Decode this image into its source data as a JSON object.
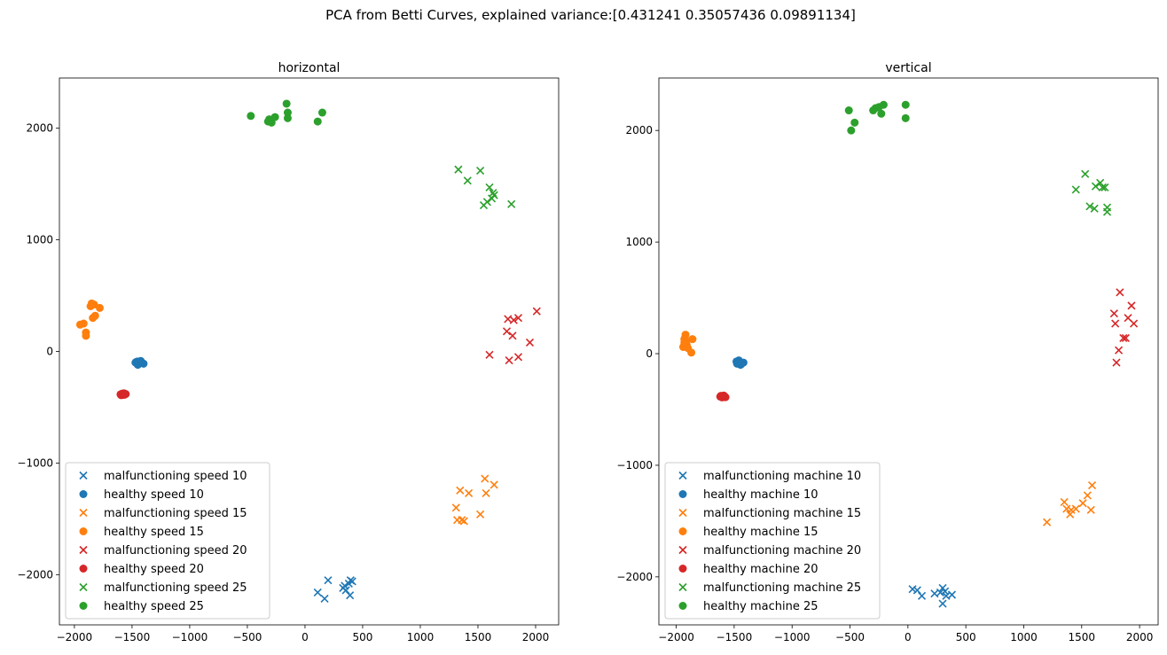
{
  "figure_title": "PCA from Betti Curves, explained variance:[0.431241   0.35057436 0.09891134]",
  "colors": {
    "10": "#1f77b4",
    "15": "#ff7f0e",
    "20": "#d62728",
    "25": "#2ca02c"
  },
  "chart_data": [
    {
      "type": "scatter",
      "title": "horizontal",
      "xlabel": "",
      "ylabel": "",
      "xlim": [
        -2130,
        2200
      ],
      "ylim": [
        -2450,
        2450
      ],
      "xticks": [
        -2000,
        -1500,
        -1000,
        -500,
        0,
        500,
        1000,
        1500,
        2000
      ],
      "yticks": [
        -2000,
        -1000,
        0,
        1000,
        2000
      ],
      "grid": false,
      "legend_position": "lower-left",
      "series": [
        {
          "name": "malfunctioning speed 10",
          "marker": "x",
          "color_key": "10",
          "points": [
            [
              110,
              -2160
            ],
            [
              170,
              -2215
            ],
            [
              200,
              -2050
            ],
            [
              330,
              -2120
            ],
            [
              345,
              -2100
            ],
            [
              355,
              -2140
            ],
            [
              380,
              -2080
            ],
            [
              395,
              -2050
            ],
            [
              390,
              -2185
            ],
            [
              410,
              -2060
            ]
          ]
        },
        {
          "name": "healthy speed 10",
          "marker": "o",
          "color_key": "10",
          "points": [
            [
              -1470,
              -100
            ],
            [
              -1455,
              -90
            ],
            [
              -1445,
              -110
            ],
            [
              -1435,
              -100
            ],
            [
              -1425,
              -85
            ],
            [
              -1410,
              -105
            ],
            [
              -1400,
              -110
            ],
            [
              -1450,
              -120
            ],
            [
              -1465,
              -95
            ],
            [
              -1420,
              -95
            ]
          ]
        },
        {
          "name": "malfunctioning speed 15",
          "marker": "x",
          "color_key": "15",
          "points": [
            [
              1310,
              -1400
            ],
            [
              1320,
              -1510
            ],
            [
              1345,
              -1245
            ],
            [
              1360,
              -1510
            ],
            [
              1380,
              -1520
            ],
            [
              1420,
              -1270
            ],
            [
              1520,
              -1460
            ],
            [
              1560,
              -1140
            ],
            [
              1570,
              -1270
            ],
            [
              1640,
              -1195
            ]
          ]
        },
        {
          "name": "healthy speed 15",
          "marker": "o",
          "color_key": "15",
          "points": [
            [
              -1950,
              240
            ],
            [
              -1920,
              250
            ],
            [
              -1900,
              140
            ],
            [
              -1900,
              170
            ],
            [
              -1860,
              405
            ],
            [
              -1850,
              430
            ],
            [
              -1840,
              300
            ],
            [
              -1830,
              420
            ],
            [
              -1820,
              320
            ],
            [
              -1780,
              390
            ]
          ]
        },
        {
          "name": "malfunctioning speed 20",
          "marker": "x",
          "color_key": "20",
          "points": [
            [
              1600,
              -30
            ],
            [
              1750,
              180
            ],
            [
              1770,
              -80
            ],
            [
              1760,
              290
            ],
            [
              1800,
              140
            ],
            [
              1810,
              280
            ],
            [
              1850,
              300
            ],
            [
              1850,
              -50
            ],
            [
              1950,
              80
            ],
            [
              2010,
              360
            ]
          ]
        },
        {
          "name": "healthy speed 20",
          "marker": "o",
          "color_key": "20",
          "points": [
            [
              -1600,
              -385
            ],
            [
              -1590,
              -380
            ],
            [
              -1580,
              -390
            ],
            [
              -1570,
              -375
            ],
            [
              -1560,
              -380
            ],
            [
              -1595,
              -392
            ],
            [
              -1575,
              -385
            ],
            [
              -1585,
              -378
            ],
            [
              -1565,
              -388
            ],
            [
              -1555,
              -382
            ]
          ]
        },
        {
          "name": "malfunctioning speed 25",
          "marker": "x",
          "color_key": "25",
          "points": [
            [
              1330,
              1630
            ],
            [
              1410,
              1530
            ],
            [
              1520,
              1620
            ],
            [
              1550,
              1310
            ],
            [
              1580,
              1340
            ],
            [
              1600,
              1470
            ],
            [
              1620,
              1370
            ],
            [
              1630,
              1420
            ],
            [
              1640,
              1400
            ],
            [
              1790,
              1320
            ]
          ]
        },
        {
          "name": "healthy speed 25",
          "marker": "o",
          "color_key": "25",
          "points": [
            [
              -470,
              2110
            ],
            [
              -320,
              2060
            ],
            [
              -310,
              2080
            ],
            [
              -290,
              2050
            ],
            [
              -260,
              2100
            ],
            [
              -160,
              2220
            ],
            [
              -150,
              2140
            ],
            [
              -150,
              2090
            ],
            [
              110,
              2060
            ],
            [
              150,
              2140
            ]
          ]
        }
      ]
    },
    {
      "type": "scatter",
      "title": "vertical",
      "xlabel": "",
      "ylabel": "",
      "xlim": [
        -2150,
        2160
      ],
      "ylim": [
        -2430,
        2470
      ],
      "xticks": [
        -2000,
        -1500,
        -1000,
        -500,
        0,
        500,
        1000,
        1500,
        2000
      ],
      "yticks": [
        -2000,
        -1000,
        0,
        1000,
        2000
      ],
      "grid": false,
      "legend_position": "lower-left",
      "series": [
        {
          "name": "malfunctioning machine 10",
          "marker": "x",
          "color_key": "10",
          "points": [
            [
              40,
              -2110
            ],
            [
              80,
              -2120
            ],
            [
              120,
              -2170
            ],
            [
              230,
              -2150
            ],
            [
              280,
              -2140
            ],
            [
              300,
              -2100
            ],
            [
              300,
              -2240
            ],
            [
              320,
              -2130
            ],
            [
              330,
              -2170
            ],
            [
              380,
              -2160
            ]
          ]
        },
        {
          "name": "healthy machine 10",
          "marker": "o",
          "color_key": "10",
          "points": [
            [
              -1480,
              -70
            ],
            [
              -1470,
              -80
            ],
            [
              -1460,
              -90
            ],
            [
              -1450,
              -75
            ],
            [
              -1440,
              -95
            ],
            [
              -1430,
              -85
            ],
            [
              -1420,
              -80
            ],
            [
              -1460,
              -60
            ],
            [
              -1445,
              -100
            ],
            [
              -1475,
              -90
            ]
          ]
        },
        {
          "name": "malfunctioning machine 15",
          "marker": "x",
          "color_key": "15",
          "points": [
            [
              1200,
              -1510
            ],
            [
              1350,
              -1330
            ],
            [
              1370,
              -1390
            ],
            [
              1400,
              -1440
            ],
            [
              1410,
              -1400
            ],
            [
              1450,
              -1390
            ],
            [
              1510,
              -1340
            ],
            [
              1550,
              -1270
            ],
            [
              1580,
              -1400
            ],
            [
              1590,
              -1180
            ]
          ]
        },
        {
          "name": "healthy machine 15",
          "marker": "o",
          "color_key": "15",
          "points": [
            [
              -1940,
              60
            ],
            [
              -1930,
              100
            ],
            [
              -1930,
              130
            ],
            [
              -1920,
              170
            ],
            [
              -1910,
              80
            ],
            [
              -1900,
              50
            ],
            [
              -1870,
              10
            ],
            [
              -1860,
              130
            ],
            [
              -1925,
              140
            ],
            [
              -1915,
              110
            ]
          ]
        },
        {
          "name": "malfunctioning machine 20",
          "marker": "x",
          "color_key": "20",
          "points": [
            [
              1780,
              360
            ],
            [
              1790,
              270
            ],
            [
              1800,
              -80
            ],
            [
              1820,
              30
            ],
            [
              1830,
              550
            ],
            [
              1860,
              140
            ],
            [
              1880,
              140
            ],
            [
              1900,
              320
            ],
            [
              1930,
              430
            ],
            [
              1950,
              270
            ]
          ]
        },
        {
          "name": "healthy machine 20",
          "marker": "o",
          "color_key": "20",
          "points": [
            [
              -1620,
              -385
            ],
            [
              -1610,
              -380
            ],
            [
              -1600,
              -390
            ],
            [
              -1590,
              -375
            ],
            [
              -1580,
              -385
            ],
            [
              -1605,
              -392
            ],
            [
              -1595,
              -382
            ],
            [
              -1585,
              -388
            ],
            [
              -1615,
              -378
            ],
            [
              -1575,
              -390
            ]
          ]
        },
        {
          "name": "malfunctioning machine 25",
          "marker": "x",
          "color_key": "25",
          "points": [
            [
              1450,
              1470
            ],
            [
              1530,
              1610
            ],
            [
              1570,
              1320
            ],
            [
              1610,
              1300
            ],
            [
              1620,
              1500
            ],
            [
              1660,
              1530
            ],
            [
              1680,
              1490
            ],
            [
              1700,
              1490
            ],
            [
              1720,
              1310
            ],
            [
              1720,
              1270
            ]
          ]
        },
        {
          "name": "healthy machine 25",
          "marker": "o",
          "color_key": "25",
          "points": [
            [
              -510,
              2180
            ],
            [
              -490,
              2000
            ],
            [
              -460,
              2070
            ],
            [
              -300,
              2180
            ],
            [
              -280,
              2200
            ],
            [
              -250,
              2210
            ],
            [
              -230,
              2150
            ],
            [
              -210,
              2230
            ],
            [
              -20,
              2230
            ],
            [
              -20,
              2110
            ]
          ]
        }
      ]
    }
  ]
}
